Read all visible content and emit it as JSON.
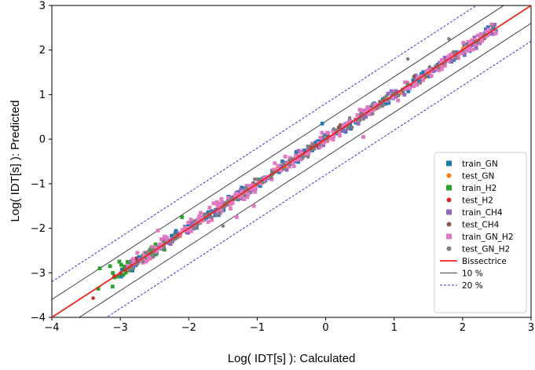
{
  "chart_data": {
    "type": "scatter",
    "title": "",
    "xlabel": "Log( IDT[s] ): Calculated",
    "ylabel": "Log( IDT[s] ): Predicted",
    "xlim": [
      -4,
      3
    ],
    "ylim": [
      -4,
      3
    ],
    "xticks": [
      -4,
      -3,
      -2,
      -1,
      0,
      1,
      2,
      3
    ],
    "yticks": [
      -4,
      -3,
      -2,
      -1,
      0,
      1,
      2,
      3
    ],
    "grid": false,
    "legend_position": "lower right",
    "series": [
      {
        "name": "train_GN",
        "color": "#1f77b4",
        "marker": "square",
        "x_range": [
          -3.0,
          2.5
        ],
        "spread": 0.06,
        "count": 220
      },
      {
        "name": "test_GN",
        "color": "#ff7f0e",
        "marker": "circle",
        "x_range": [
          -2.9,
          2.4
        ],
        "spread": 0.05,
        "count": 40
      },
      {
        "name": "train_H2",
        "color": "#2ca02c",
        "marker": "square",
        "x_range": [
          -3.4,
          -2.3
        ],
        "spread": 0.1,
        "count": 30
      },
      {
        "name": "test_H2",
        "color": "#d62728",
        "marker": "circle",
        "x_range": [
          -3.4,
          -2.7
        ],
        "spread": 0.08,
        "count": 6
      },
      {
        "name": "train_CH4",
        "color": "#9467bd",
        "marker": "square",
        "x_range": [
          -2.9,
          2.5
        ],
        "spread": 0.06,
        "count": 160
      },
      {
        "name": "test_CH4",
        "color": "#8c564b",
        "marker": "circle",
        "x_range": [
          -2.9,
          2.4
        ],
        "spread": 0.05,
        "count": 40
      },
      {
        "name": "train_GN_H2",
        "color": "#e377c2",
        "marker": "square",
        "x_range": [
          -2.9,
          2.5
        ],
        "spread": 0.08,
        "count": 260
      },
      {
        "name": "test_GN_H2",
        "color": "#7f7f7f",
        "marker": "circle",
        "x_range": [
          -2.9,
          2.5
        ],
        "spread": 0.06,
        "count": 120
      }
    ],
    "reference_lines": [
      {
        "name": "Bissectrice",
        "color": "#e8261b",
        "style": "solid",
        "offset": 0
      },
      {
        "name": "10 %",
        "color": "#444444",
        "style": "solid",
        "offset": 0.4
      },
      {
        "name": "20 %",
        "color": "#3333cc",
        "style": "dashed",
        "offset": 0.8
      }
    ],
    "outliers": [
      {
        "x": 1.2,
        "y": 1.8,
        "series": "test_GN_H2"
      },
      {
        "x": -1.5,
        "y": -1.95,
        "series": "test_GN_H2"
      },
      {
        "x": -1.3,
        "y": -1.75,
        "series": "train_GN_H2"
      },
      {
        "x": -1.05,
        "y": -1.5,
        "series": "train_GN_H2"
      },
      {
        "x": 0.55,
        "y": 0.05,
        "series": "train_GN_H2"
      },
      {
        "x": -2.1,
        "y": -1.75,
        "series": "train_H2"
      },
      {
        "x": -2.45,
        "y": -2.05,
        "series": "train_GN_H2"
      },
      {
        "x": -0.05,
        "y": 0.35,
        "series": "train_GN"
      },
      {
        "x": 1.8,
        "y": 2.25,
        "series": "test_GN_H2"
      },
      {
        "x": -3.3,
        "y": -2.9,
        "series": "train_H2"
      },
      {
        "x": -3.15,
        "y": -2.85,
        "series": "train_H2"
      }
    ]
  }
}
